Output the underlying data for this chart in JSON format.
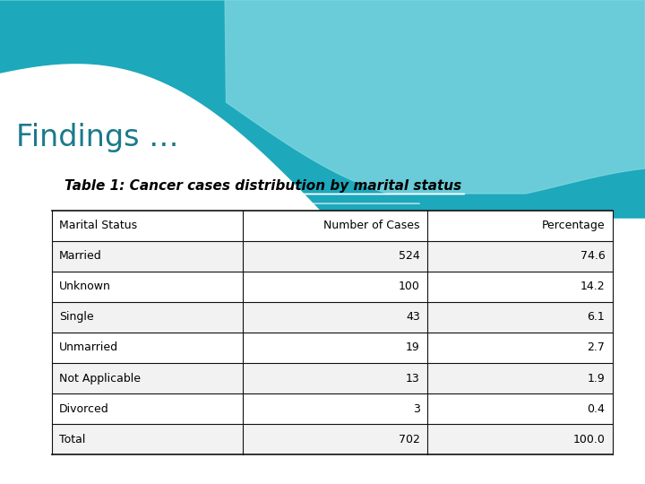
{
  "title": "Findings …",
  "subtitle": "Table 1: Cancer cases distribution by marital status",
  "table_headers": [
    "Marital Status",
    "Number of Cases",
    "Percentage"
  ],
  "table_rows": [
    [
      "Married",
      "524",
      "74.6"
    ],
    [
      "Unknown",
      "100",
      "14.2"
    ],
    [
      "Single",
      "43",
      "6.1"
    ],
    [
      "Unmarried",
      "19",
      "2.7"
    ],
    [
      "Not Applicable",
      "13",
      "1.9"
    ],
    [
      "Divorced",
      "3",
      "0.4"
    ],
    [
      "Total",
      "702",
      "100.0"
    ]
  ],
  "title_color": "#1a7a8a",
  "subtitle_color": "#000000",
  "bg_color": "#f0f0f0",
  "wave_teal_dark": "#1da8bb",
  "wave_teal_light": "#7dd6e0",
  "wave_white": "#ffffff",
  "table_line_color": "#111111",
  "row_bg_white": "#ffffff",
  "row_bg_light": "#f2f2f2",
  "title_fontsize": 24,
  "subtitle_fontsize": 11,
  "table_fontsize": 9
}
